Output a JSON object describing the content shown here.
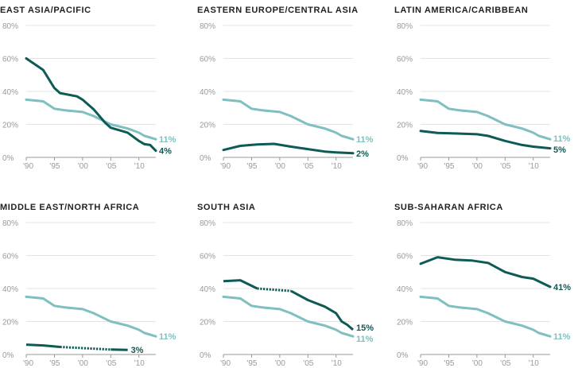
{
  "chart_data": [
    {
      "type": "line",
      "title": "EAST ASIA/PACIFIC",
      "x_ticks": [
        "'90",
        "'95",
        "'00",
        "'05",
        "'10"
      ],
      "y_ticks": [
        "0%",
        "20%",
        "40%",
        "60%",
        "80%"
      ],
      "ylim": [
        0,
        80
      ],
      "xlim": [
        1990,
        2013
      ],
      "grid": true,
      "series": [
        {
          "role": "world",
          "color": "#7fbfbf",
          "end_label": "11%",
          "x": [
            1990,
            1993,
            1995,
            1997,
            2000,
            2002,
            2005,
            2008,
            2010,
            2011,
            2012,
            2013
          ],
          "y": [
            35,
            34,
            29.5,
            28.5,
            27.5,
            25,
            20,
            17.5,
            15,
            13,
            12,
            11
          ]
        },
        {
          "role": "region",
          "color": "#0e5a55",
          "end_label": "4%",
          "x": [
            1990,
            1993,
            1995,
            1996,
            1999,
            2000,
            2002,
            2004,
            2005,
            2008,
            2010,
            2011,
            2012,
            2013
          ],
          "y": [
            60,
            53,
            42,
            39,
            37,
            35,
            29,
            21,
            18,
            15,
            10,
            8,
            7.5,
            4
          ]
        }
      ]
    },
    {
      "type": "line",
      "title": "EASTERN EUROPE/CENTRAL ASIA",
      "x_ticks": [
        "'90",
        "'95",
        "'00",
        "'05",
        "'10"
      ],
      "y_ticks": [
        "0%",
        "20%",
        "40%",
        "60%",
        "80%"
      ],
      "ylim": [
        0,
        80
      ],
      "xlim": [
        1990,
        2013
      ],
      "grid": true,
      "series": [
        {
          "role": "world",
          "color": "#7fbfbf",
          "end_label": "11%",
          "x": [
            1990,
            1993,
            1995,
            1997,
            2000,
            2002,
            2005,
            2008,
            2010,
            2011,
            2012,
            2013
          ],
          "y": [
            35,
            34,
            29.5,
            28.5,
            27.5,
            25,
            20,
            17.5,
            15,
            13,
            12,
            11
          ]
        },
        {
          "role": "region",
          "color": "#0e5a55",
          "end_label": "2%",
          "x": [
            1990,
            1993,
            1996,
            1999,
            2002,
            2005,
            2008,
            2010,
            2013
          ],
          "y": [
            4.5,
            7,
            7.8,
            8.2,
            6.5,
            5,
            3.5,
            3,
            2.5
          ]
        }
      ]
    },
    {
      "type": "line",
      "title": "LATIN AMERICA/CARIBBEAN",
      "x_ticks": [
        "'90",
        "'95",
        "'00",
        "'05",
        "'10"
      ],
      "y_ticks": [
        "0%",
        "20%",
        "40%",
        "60%",
        "80%"
      ],
      "ylim": [
        0,
        80
      ],
      "xlim": [
        1990,
        2013
      ],
      "grid": true,
      "series": [
        {
          "role": "world",
          "color": "#7fbfbf",
          "end_label": "11%",
          "x": [
            1990,
            1993,
            1995,
            1997,
            2000,
            2002,
            2005,
            2008,
            2010,
            2011,
            2012,
            2013
          ],
          "y": [
            35,
            34,
            29.5,
            28.5,
            27.5,
            25,
            20,
            17.5,
            15,
            13,
            12,
            11
          ]
        },
        {
          "role": "region",
          "color": "#0e5a55",
          "end_label": "5%",
          "x": [
            1990,
            1993,
            1996,
            2000,
            2002,
            2005,
            2008,
            2010,
            2013
          ],
          "y": [
            16,
            14.8,
            14.5,
            14,
            13,
            10,
            7.5,
            6.5,
            5.5
          ]
        }
      ]
    },
    {
      "type": "line",
      "title": "MIDDLE EAST/NORTH AFRICA",
      "x_ticks": [
        "'90",
        "'95",
        "'00",
        "'05",
        "'10"
      ],
      "y_ticks": [
        "0%",
        "20%",
        "40%",
        "60%",
        "80%"
      ],
      "ylim": [
        0,
        80
      ],
      "xlim": [
        1990,
        2013
      ],
      "grid": true,
      "series": [
        {
          "role": "world",
          "color": "#7fbfbf",
          "end_label": "11%",
          "x": [
            1990,
            1993,
            1995,
            1997,
            2000,
            2002,
            2005,
            2008,
            2010,
            2011,
            2012,
            2013
          ],
          "y": [
            35,
            34,
            29.5,
            28.5,
            27.5,
            25,
            20,
            17.5,
            15,
            13,
            12,
            11
          ]
        },
        {
          "role": "region",
          "color": "#0e5a55",
          "end_label": "3%",
          "x": [
            1990,
            1993,
            1996,
            2005,
            2008
          ],
          "y": [
            6,
            5.5,
            4.6,
            3,
            2.8
          ],
          "dashed_from": 1996,
          "dashed_to": 2005
        }
      ]
    },
    {
      "type": "line",
      "title": "SOUTH ASIA",
      "x_ticks": [
        "'90",
        "'95",
        "'00",
        "'05",
        "'10"
      ],
      "y_ticks": [
        "0%",
        "20%",
        "40%",
        "60%",
        "80%"
      ],
      "ylim": [
        0,
        80
      ],
      "xlim": [
        1990,
        2013
      ],
      "grid": true,
      "series": [
        {
          "role": "world",
          "color": "#7fbfbf",
          "end_label": "11%",
          "x": [
            1990,
            1993,
            1995,
            1997,
            2000,
            2002,
            2005,
            2008,
            2010,
            2011,
            2012,
            2013
          ],
          "y": [
            35,
            34,
            29.5,
            28.5,
            27.5,
            25,
            20,
            17.5,
            15,
            13,
            12,
            11
          ]
        },
        {
          "role": "region",
          "color": "#0e5a55",
          "end_label": "15%",
          "x": [
            1990,
            1993,
            1996,
            2002,
            2005,
            2008,
            2010,
            2011,
            2012,
            2013
          ],
          "y": [
            44.5,
            45,
            40,
            38.5,
            33,
            29,
            25,
            20,
            18,
            15
          ],
          "dashed_from": 1996,
          "dashed_to": 2002
        }
      ]
    },
    {
      "type": "line",
      "title": "SUB-SAHARAN AFRICA",
      "x_ticks": [
        "'90",
        "'95",
        "'00",
        "'05",
        "'10"
      ],
      "y_ticks": [
        "0%",
        "20%",
        "40%",
        "60%",
        "80%"
      ],
      "ylim": [
        0,
        80
      ],
      "xlim": [
        1990,
        2013
      ],
      "grid": true,
      "series": [
        {
          "role": "world",
          "color": "#7fbfbf",
          "end_label": "11%",
          "x": [
            1990,
            1993,
            1995,
            1997,
            2000,
            2002,
            2005,
            2008,
            2010,
            2011,
            2012,
            2013
          ],
          "y": [
            35,
            34,
            29.5,
            28.5,
            27.5,
            25,
            20,
            17.5,
            15,
            13,
            12,
            11
          ]
        },
        {
          "role": "region",
          "color": "#0e5a55",
          "end_label": "41%",
          "x": [
            1990,
            1993,
            1996,
            1999,
            2002,
            2005,
            2008,
            2010,
            2013
          ],
          "y": [
            55,
            59,
            57.5,
            57,
            55.5,
            50,
            47,
            46,
            41
          ]
        }
      ]
    }
  ]
}
